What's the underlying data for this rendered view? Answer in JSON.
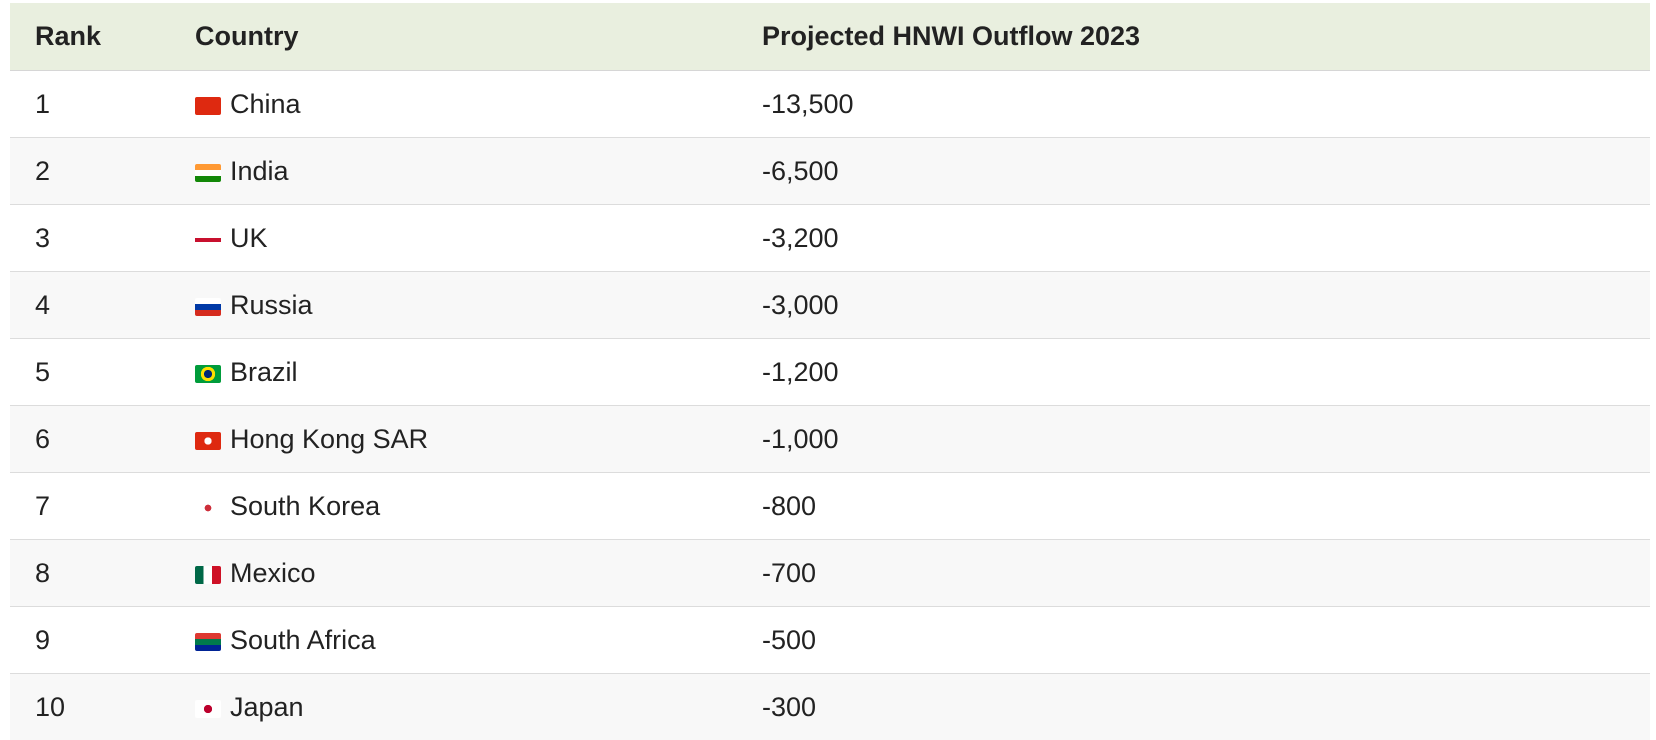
{
  "table": {
    "header": [
      "Rank",
      "Country",
      "Projected HNWI Outflow 2023"
    ],
    "rows": [
      [
        "1",
        "China",
        "-13,500"
      ],
      [
        "2",
        "India",
        "-6,500"
      ],
      [
        "3",
        "UK",
        "-3,200"
      ],
      [
        "4",
        "Russia",
        "-3,000"
      ],
      [
        "5",
        "Brazil",
        "-1,200"
      ],
      [
        "6",
        "Hong Kong SAR",
        "-1,000"
      ],
      [
        "7",
        "South Korea",
        "-800"
      ],
      [
        "8",
        "Mexico",
        "-700"
      ],
      [
        "9",
        "South Africa",
        "-500"
      ],
      [
        "10",
        "Japan",
        "-300"
      ]
    ]
  }
}
